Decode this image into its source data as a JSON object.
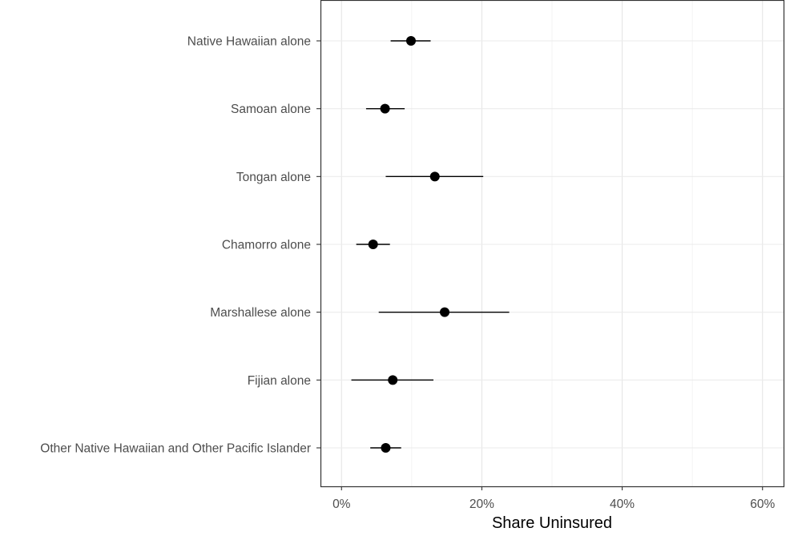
{
  "chart_data": {
    "type": "pointrange",
    "xlabel": "Share Uninsured",
    "ylabel": "",
    "title": "",
    "xlim": [
      -0.03,
      0.63
    ],
    "x_ticks": [
      0,
      0.2,
      0.4,
      0.6
    ],
    "x_tick_labels": [
      "0%",
      "20%",
      "40%",
      "60%"
    ],
    "grid": true,
    "theme": "bw",
    "categories": [
      "Native Hawaiian alone",
      "Samoan alone",
      "Tongan alone",
      "Chamorro alone",
      "Marshallese alone",
      "Fijian alone",
      "Other Native Hawaiian and Other Pacific Islander"
    ],
    "estimates": [
      0.099,
      0.062,
      0.133,
      0.045,
      0.147,
      0.073,
      0.063
    ],
    "lower": [
      0.07,
      0.035,
      0.063,
      0.021,
      0.053,
      0.014,
      0.041
    ],
    "upper": [
      0.127,
      0.09,
      0.202,
      0.069,
      0.239,
      0.131,
      0.085
    ]
  }
}
